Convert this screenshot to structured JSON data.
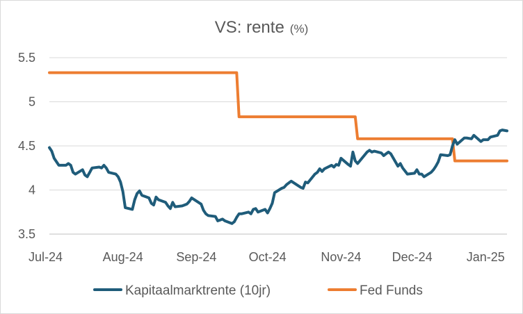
{
  "chart_data": {
    "type": "line",
    "title": "VS: rente",
    "title_unit": "(%)",
    "xlabel": "",
    "ylabel": "",
    "x_ticks": [
      "Jul-24",
      "Aug-24",
      "Sep-24",
      "Oct-24",
      "Nov-24",
      "Dec-24",
      "Jan-25"
    ],
    "y_ticks": [
      "3.5",
      "4",
      "4.5",
      "5",
      "5.5"
    ],
    "xlim": [
      "2024-07-01",
      "2025-01-10"
    ],
    "ylim": [
      3.5,
      5.5
    ],
    "grid": true,
    "legend_position": "bottom",
    "series": [
      {
        "name": "Kapitaalmarktrente (10jr)",
        "color": "#1f5c7a",
        "points": [
          [
            "2024-07-01",
            4.48
          ],
          [
            "2024-07-02",
            4.44
          ],
          [
            "2024-07-03",
            4.36
          ],
          [
            "2024-07-05",
            4.28
          ],
          [
            "2024-07-08",
            4.28
          ],
          [
            "2024-07-09",
            4.3
          ],
          [
            "2024-07-10",
            4.28
          ],
          [
            "2024-07-11",
            4.2
          ],
          [
            "2024-07-12",
            4.18
          ],
          [
            "2024-07-15",
            4.23
          ],
          [
            "2024-07-16",
            4.17
          ],
          [
            "2024-07-17",
            4.15
          ],
          [
            "2024-07-18",
            4.2
          ],
          [
            "2024-07-19",
            4.25
          ],
          [
            "2024-07-22",
            4.26
          ],
          [
            "2024-07-23",
            4.25
          ],
          [
            "2024-07-24",
            4.28
          ],
          [
            "2024-07-25",
            4.25
          ],
          [
            "2024-07-26",
            4.2
          ],
          [
            "2024-07-29",
            4.18
          ],
          [
            "2024-07-30",
            4.15
          ],
          [
            "2024-07-31",
            4.09
          ],
          [
            "2024-08-01",
            3.98
          ],
          [
            "2024-08-02",
            3.8
          ],
          [
            "2024-08-05",
            3.78
          ],
          [
            "2024-08-06",
            3.89
          ],
          [
            "2024-08-07",
            3.96
          ],
          [
            "2024-08-08",
            3.99
          ],
          [
            "2024-08-09",
            3.94
          ],
          [
            "2024-08-12",
            3.91
          ],
          [
            "2024-08-13",
            3.85
          ],
          [
            "2024-08-14",
            3.83
          ],
          [
            "2024-08-15",
            3.92
          ],
          [
            "2024-08-16",
            3.89
          ],
          [
            "2024-08-19",
            3.86
          ],
          [
            "2024-08-20",
            3.82
          ],
          [
            "2024-08-21",
            3.79
          ],
          [
            "2024-08-22",
            3.86
          ],
          [
            "2024-08-23",
            3.81
          ],
          [
            "2024-08-26",
            3.82
          ],
          [
            "2024-08-27",
            3.83
          ],
          [
            "2024-08-28",
            3.84
          ],
          [
            "2024-08-29",
            3.87
          ],
          [
            "2024-08-30",
            3.91
          ],
          [
            "2024-09-03",
            3.84
          ],
          [
            "2024-09-04",
            3.77
          ],
          [
            "2024-09-05",
            3.73
          ],
          [
            "2024-09-06",
            3.71
          ],
          [
            "2024-09-09",
            3.7
          ],
          [
            "2024-09-10",
            3.65
          ],
          [
            "2024-09-11",
            3.66
          ],
          [
            "2024-09-12",
            3.67
          ],
          [
            "2024-09-13",
            3.65
          ],
          [
            "2024-09-16",
            3.62
          ],
          [
            "2024-09-17",
            3.64
          ],
          [
            "2024-09-18",
            3.69
          ],
          [
            "2024-09-19",
            3.73
          ],
          [
            "2024-09-20",
            3.73
          ],
          [
            "2024-09-23",
            3.75
          ],
          [
            "2024-09-24",
            3.73
          ],
          [
            "2024-09-25",
            3.78
          ],
          [
            "2024-09-26",
            3.79
          ],
          [
            "2024-09-27",
            3.75
          ],
          [
            "2024-09-30",
            3.78
          ],
          [
            "2024-10-01",
            3.74
          ],
          [
            "2024-10-02",
            3.79
          ],
          [
            "2024-10-03",
            3.85
          ],
          [
            "2024-10-04",
            3.97
          ],
          [
            "2024-10-07",
            4.02
          ],
          [
            "2024-10-08",
            4.03
          ],
          [
            "2024-10-09",
            4.06
          ],
          [
            "2024-10-10",
            4.08
          ],
          [
            "2024-10-11",
            4.1
          ],
          [
            "2024-10-15",
            4.03
          ],
          [
            "2024-10-16",
            4.02
          ],
          [
            "2024-10-17",
            4.09
          ],
          [
            "2024-10-18",
            4.08
          ],
          [
            "2024-10-21",
            4.18
          ],
          [
            "2024-10-22",
            4.2
          ],
          [
            "2024-10-23",
            4.24
          ],
          [
            "2024-10-24",
            4.21
          ],
          [
            "2024-10-25",
            4.24
          ],
          [
            "2024-10-28",
            4.28
          ],
          [
            "2024-10-29",
            4.26
          ],
          [
            "2024-10-30",
            4.29
          ],
          [
            "2024-10-31",
            4.28
          ],
          [
            "2024-11-01",
            4.36
          ],
          [
            "2024-11-04",
            4.29
          ],
          [
            "2024-11-05",
            4.27
          ],
          [
            "2024-11-06",
            4.43
          ],
          [
            "2024-11-07",
            4.33
          ],
          [
            "2024-11-08",
            4.3
          ],
          [
            "2024-11-12",
            4.43
          ],
          [
            "2024-11-13",
            4.45
          ],
          [
            "2024-11-14",
            4.43
          ],
          [
            "2024-11-15",
            4.44
          ],
          [
            "2024-11-18",
            4.42
          ],
          [
            "2024-11-19",
            4.39
          ],
          [
            "2024-11-20",
            4.41
          ],
          [
            "2024-11-21",
            4.43
          ],
          [
            "2024-11-22",
            4.41
          ],
          [
            "2024-11-25",
            4.27
          ],
          [
            "2024-11-26",
            4.3
          ],
          [
            "2024-11-27",
            4.25
          ],
          [
            "2024-11-29",
            4.18
          ],
          [
            "2024-12-02",
            4.19
          ],
          [
            "2024-12-03",
            4.23
          ],
          [
            "2024-12-04",
            4.18
          ],
          [
            "2024-12-05",
            4.18
          ],
          [
            "2024-12-06",
            4.15
          ],
          [
            "2024-12-09",
            4.2
          ],
          [
            "2024-12-10",
            4.23
          ],
          [
            "2024-12-11",
            4.27
          ],
          [
            "2024-12-12",
            4.32
          ],
          [
            "2024-12-13",
            4.4
          ],
          [
            "2024-12-16",
            4.39
          ],
          [
            "2024-12-17",
            4.4
          ],
          [
            "2024-12-18",
            4.5
          ],
          [
            "2024-12-19",
            4.57
          ],
          [
            "2024-12-20",
            4.52
          ],
          [
            "2024-12-23",
            4.59
          ],
          [
            "2024-12-24",
            4.59
          ],
          [
            "2024-12-26",
            4.58
          ],
          [
            "2024-12-27",
            4.62
          ],
          [
            "2024-12-30",
            4.55
          ],
          [
            "2024-12-31",
            4.57
          ],
          [
            "2025-01-02",
            4.57
          ],
          [
            "2025-01-03",
            4.6
          ],
          [
            "2025-01-06",
            4.62
          ],
          [
            "2025-01-07",
            4.67
          ],
          [
            "2025-01-08",
            4.68
          ],
          [
            "2025-01-10",
            4.67
          ]
        ]
      },
      {
        "name": "Fed Funds",
        "color": "#ed7d31",
        "points": [
          [
            "2024-07-01",
            5.33
          ],
          [
            "2024-09-18",
            5.33
          ],
          [
            "2024-09-19",
            4.83
          ],
          [
            "2024-11-07",
            4.83
          ],
          [
            "2024-11-08",
            4.58
          ],
          [
            "2024-12-18",
            4.58
          ],
          [
            "2024-12-19",
            4.33
          ],
          [
            "2025-01-10",
            4.33
          ]
        ]
      }
    ]
  }
}
